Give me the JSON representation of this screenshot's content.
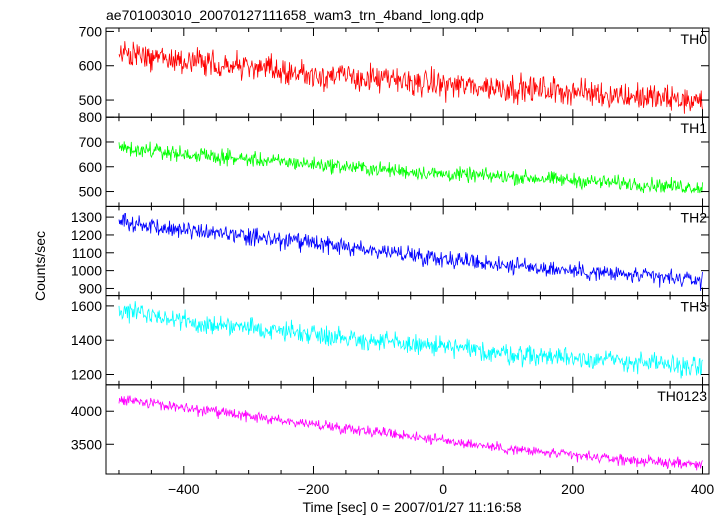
{
  "title": "ae701003010_20070127111658_wam3_trn_4band_long.qdp",
  "ylabel": "Counts/sec",
  "xlabel": "Time [sec] 0 = 2007/01/27 11:16:58",
  "chart_data": [
    {
      "type": "line",
      "name": "TH0",
      "color": "#ff0000",
      "xlim": [
        -520,
        410
      ],
      "ylim": [
        450,
        710
      ],
      "yticks": [
        500,
        600,
        700
      ],
      "xticks": [
        -400,
        -200,
        0,
        200,
        400
      ],
      "x": [
        -500,
        -400,
        -300,
        -200,
        -100,
        0,
        100,
        200,
        300,
        400
      ],
      "y": [
        635,
        615,
        595,
        575,
        560,
        545,
        535,
        525,
        510,
        495
      ],
      "noise": 30
    },
    {
      "type": "line",
      "name": "TH1",
      "color": "#00ff00",
      "xlim": [
        -520,
        410
      ],
      "ylim": [
        440,
        800
      ],
      "yticks": [
        500,
        600,
        700,
        800
      ],
      "xticks": [
        -400,
        -200,
        0,
        200,
        400
      ],
      "x": [
        -500,
        -400,
        -300,
        -200,
        -100,
        0,
        100,
        200,
        300,
        400
      ],
      "y": [
        680,
        650,
        630,
        610,
        590,
        570,
        560,
        545,
        530,
        515
      ],
      "noise": 22
    },
    {
      "type": "line",
      "name": "TH2",
      "color": "#0000ff",
      "xlim": [
        -520,
        410
      ],
      "ylim": [
        860,
        1360
      ],
      "yticks": [
        900,
        1000,
        1100,
        1200,
        1300
      ],
      "xticks": [
        -400,
        -200,
        0,
        200,
        400
      ],
      "x": [
        -500,
        -400,
        -300,
        -200,
        -100,
        0,
        100,
        200,
        300,
        400
      ],
      "y": [
        1270,
        1230,
        1190,
        1150,
        1110,
        1070,
        1030,
        1000,
        970,
        945
      ],
      "noise": 35
    },
    {
      "type": "line",
      "name": "TH3",
      "color": "#00ffff",
      "xlim": [
        -520,
        410
      ],
      "ylim": [
        1140,
        1660
      ],
      "yticks": [
        1200,
        1400,
        1600
      ],
      "xticks": [
        -400,
        -200,
        0,
        200,
        400
      ],
      "x": [
        -500,
        -400,
        -300,
        -200,
        -100,
        0,
        100,
        200,
        300,
        400
      ],
      "y": [
        1570,
        1510,
        1470,
        1440,
        1390,
        1360,
        1320,
        1300,
        1270,
        1240
      ],
      "noise": 45
    },
    {
      "type": "line",
      "name": "TH0123",
      "color": "#ff00ff",
      "xlim": [
        -520,
        410
      ],
      "ylim": [
        3050,
        4400
      ],
      "yticks": [
        3500,
        4000
      ],
      "xticks": [
        -400,
        -200,
        0,
        200,
        400
      ],
      "x": [
        -500,
        -400,
        -300,
        -200,
        -100,
        0,
        100,
        200,
        300,
        400
      ],
      "y": [
        4180,
        4050,
        3920,
        3800,
        3690,
        3560,
        3430,
        3330,
        3250,
        3190
      ],
      "noise": 60
    }
  ]
}
